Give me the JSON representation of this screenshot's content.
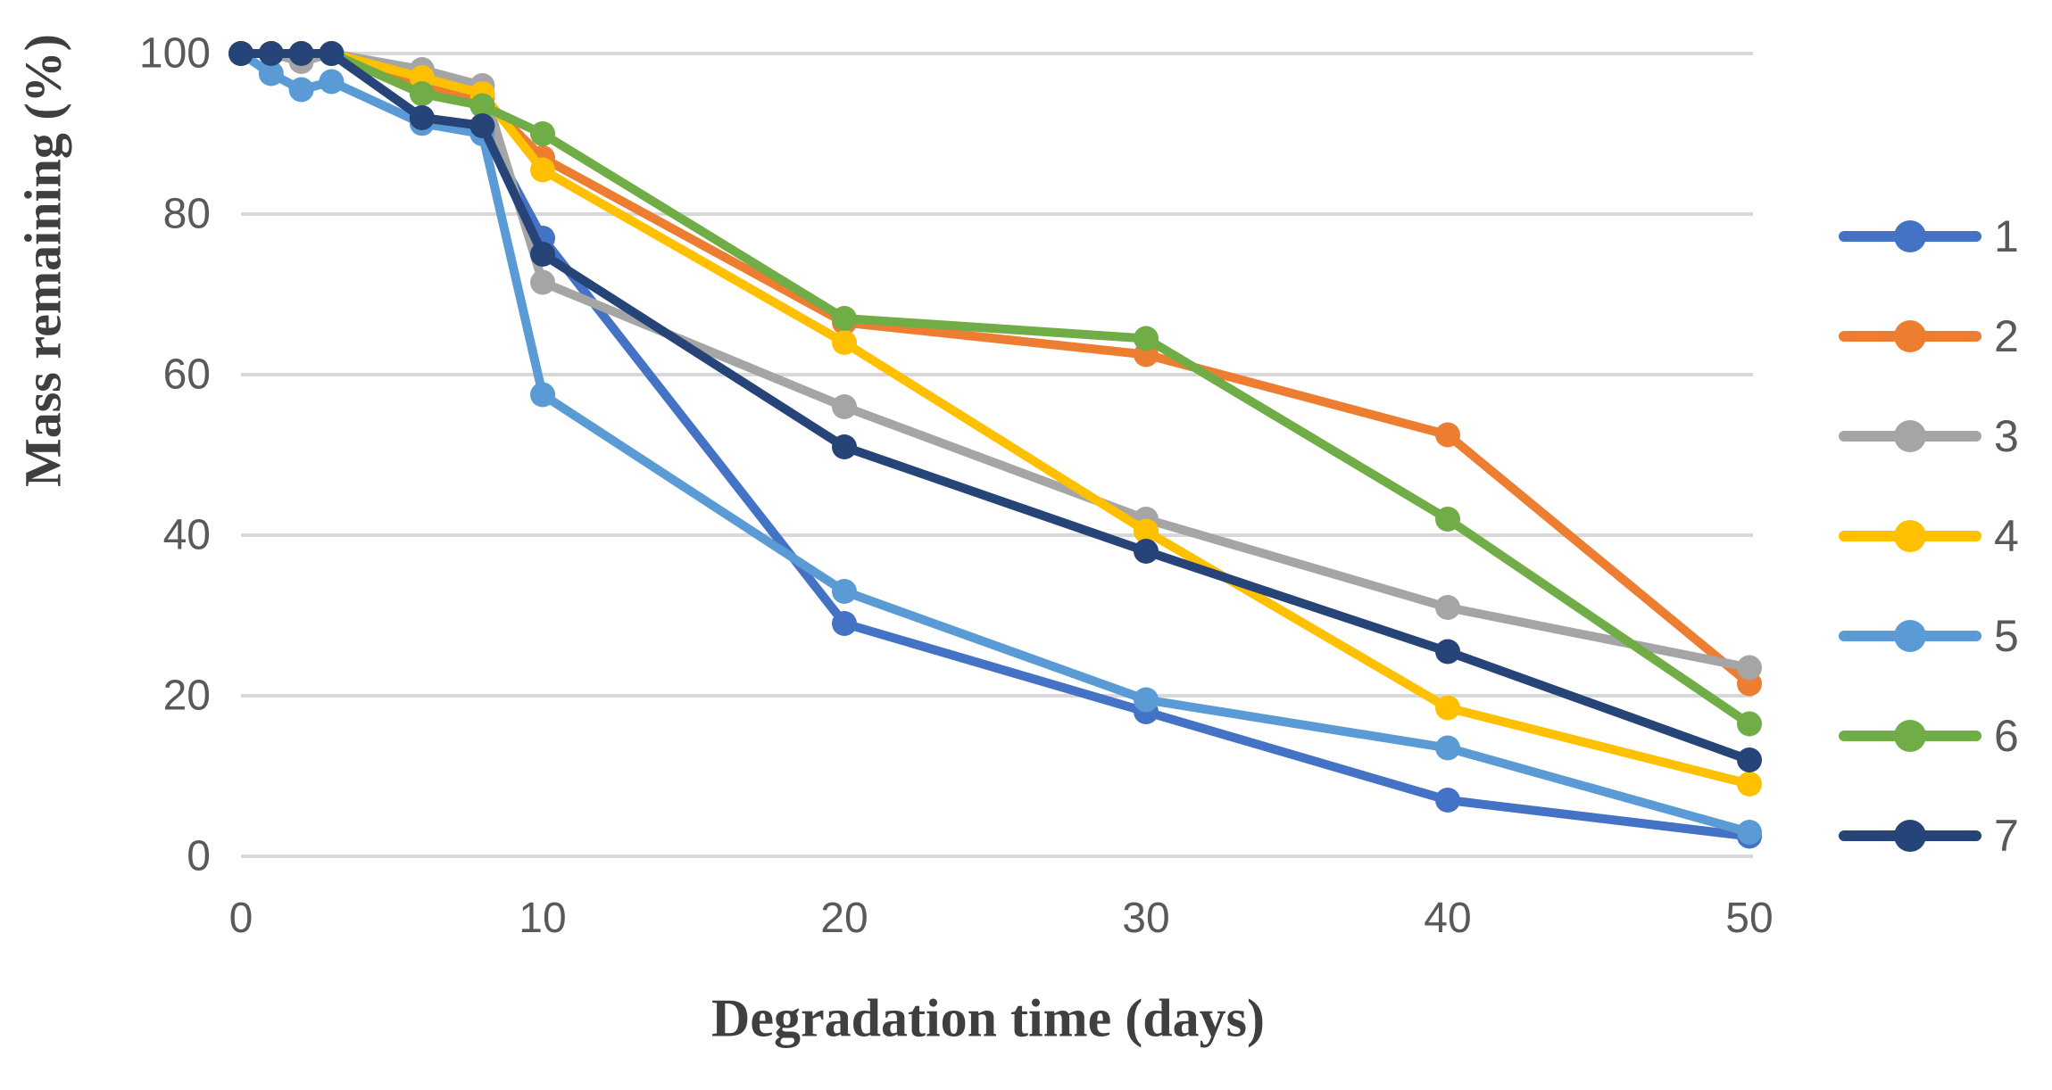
{
  "chart_data": {
    "type": "line",
    "title": "",
    "xlabel": "Degradation time (days)",
    "ylabel": "Mass remaining (%)",
    "x": [
      0,
      1,
      2,
      3,
      6,
      8,
      10,
      20,
      30,
      40,
      50
    ],
    "series": [
      {
        "name": "1",
        "color": "#4472C4",
        "values": [
          100,
          100,
          100,
          100,
          92,
          91,
          77,
          29,
          18,
          7,
          2.5
        ]
      },
      {
        "name": "2",
        "color": "#ED7D31",
        "values": [
          100,
          100,
          100,
          100,
          96,
          94.5,
          87,
          66.5,
          62.5,
          52.5,
          21.5
        ]
      },
      {
        "name": "3",
        "color": "#A5A5A5",
        "values": [
          100,
          100,
          99,
          100,
          98,
          96,
          71.5,
          56,
          42,
          31,
          23.5
        ]
      },
      {
        "name": "4",
        "color": "#FFC000",
        "values": [
          100,
          100,
          100,
          100,
          97,
          95,
          85.5,
          64,
          40.5,
          18.5,
          9
        ]
      },
      {
        "name": "5",
        "color": "#5B9BD5",
        "values": [
          100,
          97.5,
          95.5,
          96.5,
          91.3,
          90,
          57.5,
          33,
          19.5,
          13.5,
          3
        ]
      },
      {
        "name": "6",
        "color": "#70AD47",
        "values": [
          100,
          100,
          100,
          100,
          95,
          93.5,
          90,
          67,
          64.5,
          42,
          16.5
        ]
      },
      {
        "name": "7",
        "color": "#264478",
        "values": [
          100,
          100,
          100,
          100,
          92,
          91,
          75,
          51,
          38,
          25.5,
          12
        ]
      }
    ],
    "xticks": [
      0,
      10,
      20,
      30,
      40,
      50
    ],
    "yticks": [
      0,
      20,
      40,
      60,
      80,
      100
    ],
    "xlim": [
      0,
      50
    ],
    "ylim": [
      0,
      100
    ],
    "grid": "horizontal",
    "legend_position": "right",
    "gridline_color": "#D8D8D8",
    "tick_label_color": "#595959",
    "axis_title_color": "#3f3f3f"
  }
}
